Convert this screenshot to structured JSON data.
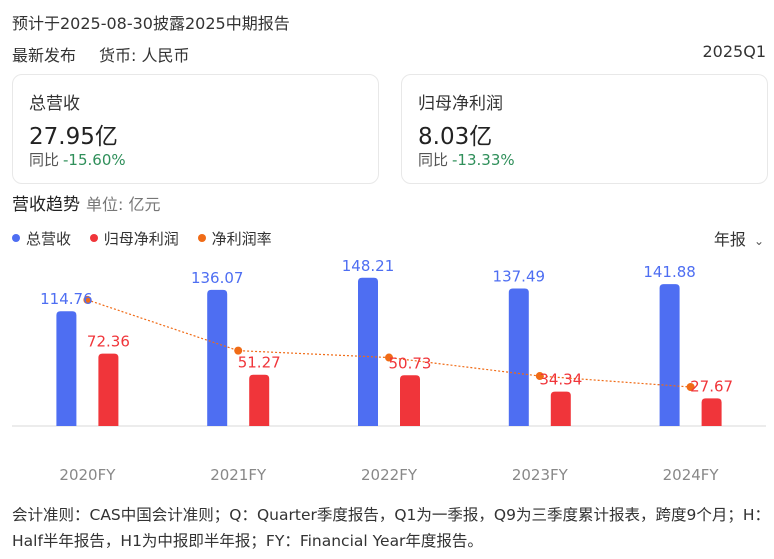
{
  "header": {
    "notice": "预计于2025-08-30披露2025中期报告",
    "latest_label": "最新发布",
    "currency_label": "货币: 人民币",
    "period": "2025Q1"
  },
  "cards": [
    {
      "title": "总营收",
      "value": "27.95亿",
      "yoy_label": "同比",
      "yoy_value": "-15.60%"
    },
    {
      "title": "归母净利润",
      "value": "8.03亿",
      "yoy_label": "同比",
      "yoy_value": "-13.33%"
    }
  ],
  "trend": {
    "title": "营收趋势",
    "unit": "单位: 亿元",
    "period_select": "年报"
  },
  "colors": {
    "revenue": "#4e6ef2",
    "net_profit": "#f0353a",
    "margin": "#f06b16",
    "positive_yoy": "#2f8f5a"
  },
  "chart_data": {
    "type": "bar",
    "categories": [
      "2020FY",
      "2021FY",
      "2022FY",
      "2023FY",
      "2024FY"
    ],
    "series": [
      {
        "name": "总营收",
        "type": "bar",
        "values": [
          114.76,
          136.07,
          148.21,
          137.49,
          141.88
        ],
        "labels": [
          "114.76",
          "136.07",
          "148.21",
          "137.49",
          "141.88"
        ]
      },
      {
        "name": "归母净利润",
        "type": "bar",
        "values": [
          72.36,
          51.27,
          50.73,
          34.34,
          27.67
        ],
        "labels": [
          "72.36",
          "51.27",
          "50.73",
          "34.34",
          "27.67"
        ]
      },
      {
        "name": "净利润率",
        "type": "line",
        "values": [
          63.05,
          37.68,
          34.23,
          24.98,
          19.5
        ]
      }
    ],
    "ylim": [
      0,
      160
    ],
    "margin_ylim": [
      0,
      80
    ],
    "grid": false,
    "legend": "top-left"
  },
  "footnote": "会计准则：CAS中国会计准则；Q：Quarter季度报告，Q1为一季报，Q9为三季度累计报表，跨度9个月；H：Half半年报告，H1为中报即半年报；FY：Financial Year年度报告。"
}
